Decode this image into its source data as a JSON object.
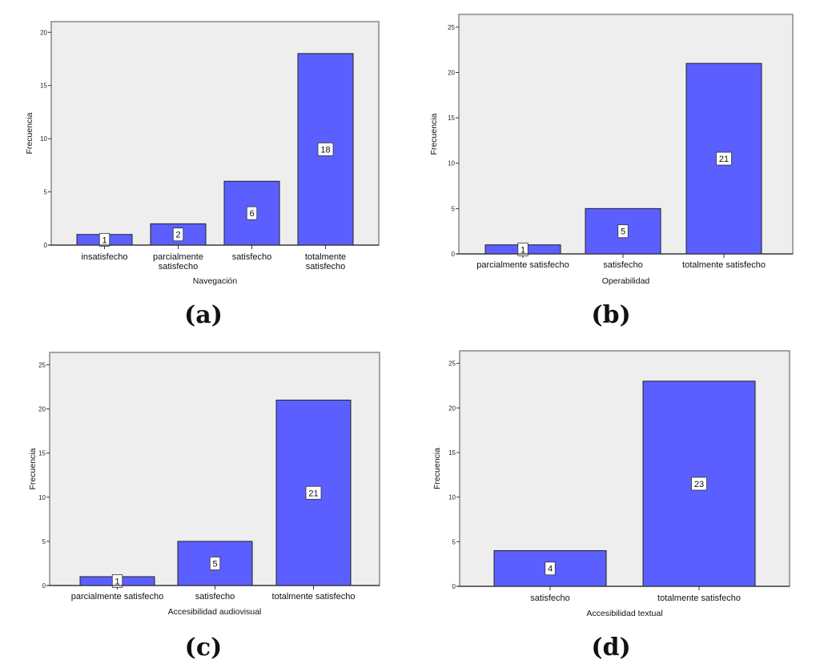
{
  "colors": {
    "bar": "#5b5fff",
    "plot_background": "#eeeeee",
    "axis": "#333333"
  },
  "chart_data": [
    {
      "type": "bar",
      "panel_label": "(a)",
      "categories": [
        "insatisfecho",
        "parcialmente satisfecho",
        "satisfecho",
        "totalmente satisfecho"
      ],
      "values": [
        1,
        2,
        6,
        18
      ],
      "data_labels": [
        "1",
        "2",
        "6",
        "18"
      ],
      "xlabel": "Navegación",
      "ylabel": "Frecuencia",
      "ylim": [
        0,
        21
      ],
      "yticks": [
        0,
        5,
        10,
        15,
        20
      ],
      "grid": false
    },
    {
      "type": "bar",
      "panel_label": "(b)",
      "categories": [
        "parcialmente satisfecho",
        "satisfecho",
        "totalmente satisfecho"
      ],
      "values": [
        1,
        5,
        21
      ],
      "data_labels": [
        "1",
        "5",
        "21"
      ],
      "xlabel": "Operabilidad",
      "ylabel": "Frecuencia",
      "ylim": [
        0,
        26.4
      ],
      "yticks": [
        0,
        5,
        10,
        15,
        20,
        25
      ],
      "grid": false
    },
    {
      "type": "bar",
      "panel_label": "(c)",
      "categories": [
        "parcialmente satisfecho",
        "satisfecho",
        "totalmente satisfecho"
      ],
      "values": [
        1,
        5,
        21
      ],
      "data_labels": [
        "1",
        "5",
        "21"
      ],
      "xlabel": "Accesibilidad audiovisual",
      "ylabel": "Frecuencia",
      "ylim": [
        0,
        26.4
      ],
      "yticks": [
        0,
        5,
        10,
        15,
        20,
        25
      ],
      "grid": false
    },
    {
      "type": "bar",
      "panel_label": "(d)",
      "categories": [
        "satisfecho",
        "totalmente satisfecho"
      ],
      "values": [
        4,
        23
      ],
      "data_labels": [
        "4",
        "23"
      ],
      "xlabel": "Accesibilidad textual",
      "ylabel": "Frecuencia",
      "ylim": [
        0,
        26.4
      ],
      "yticks": [
        0,
        5,
        10,
        15,
        20,
        25
      ],
      "grid": false
    }
  ]
}
